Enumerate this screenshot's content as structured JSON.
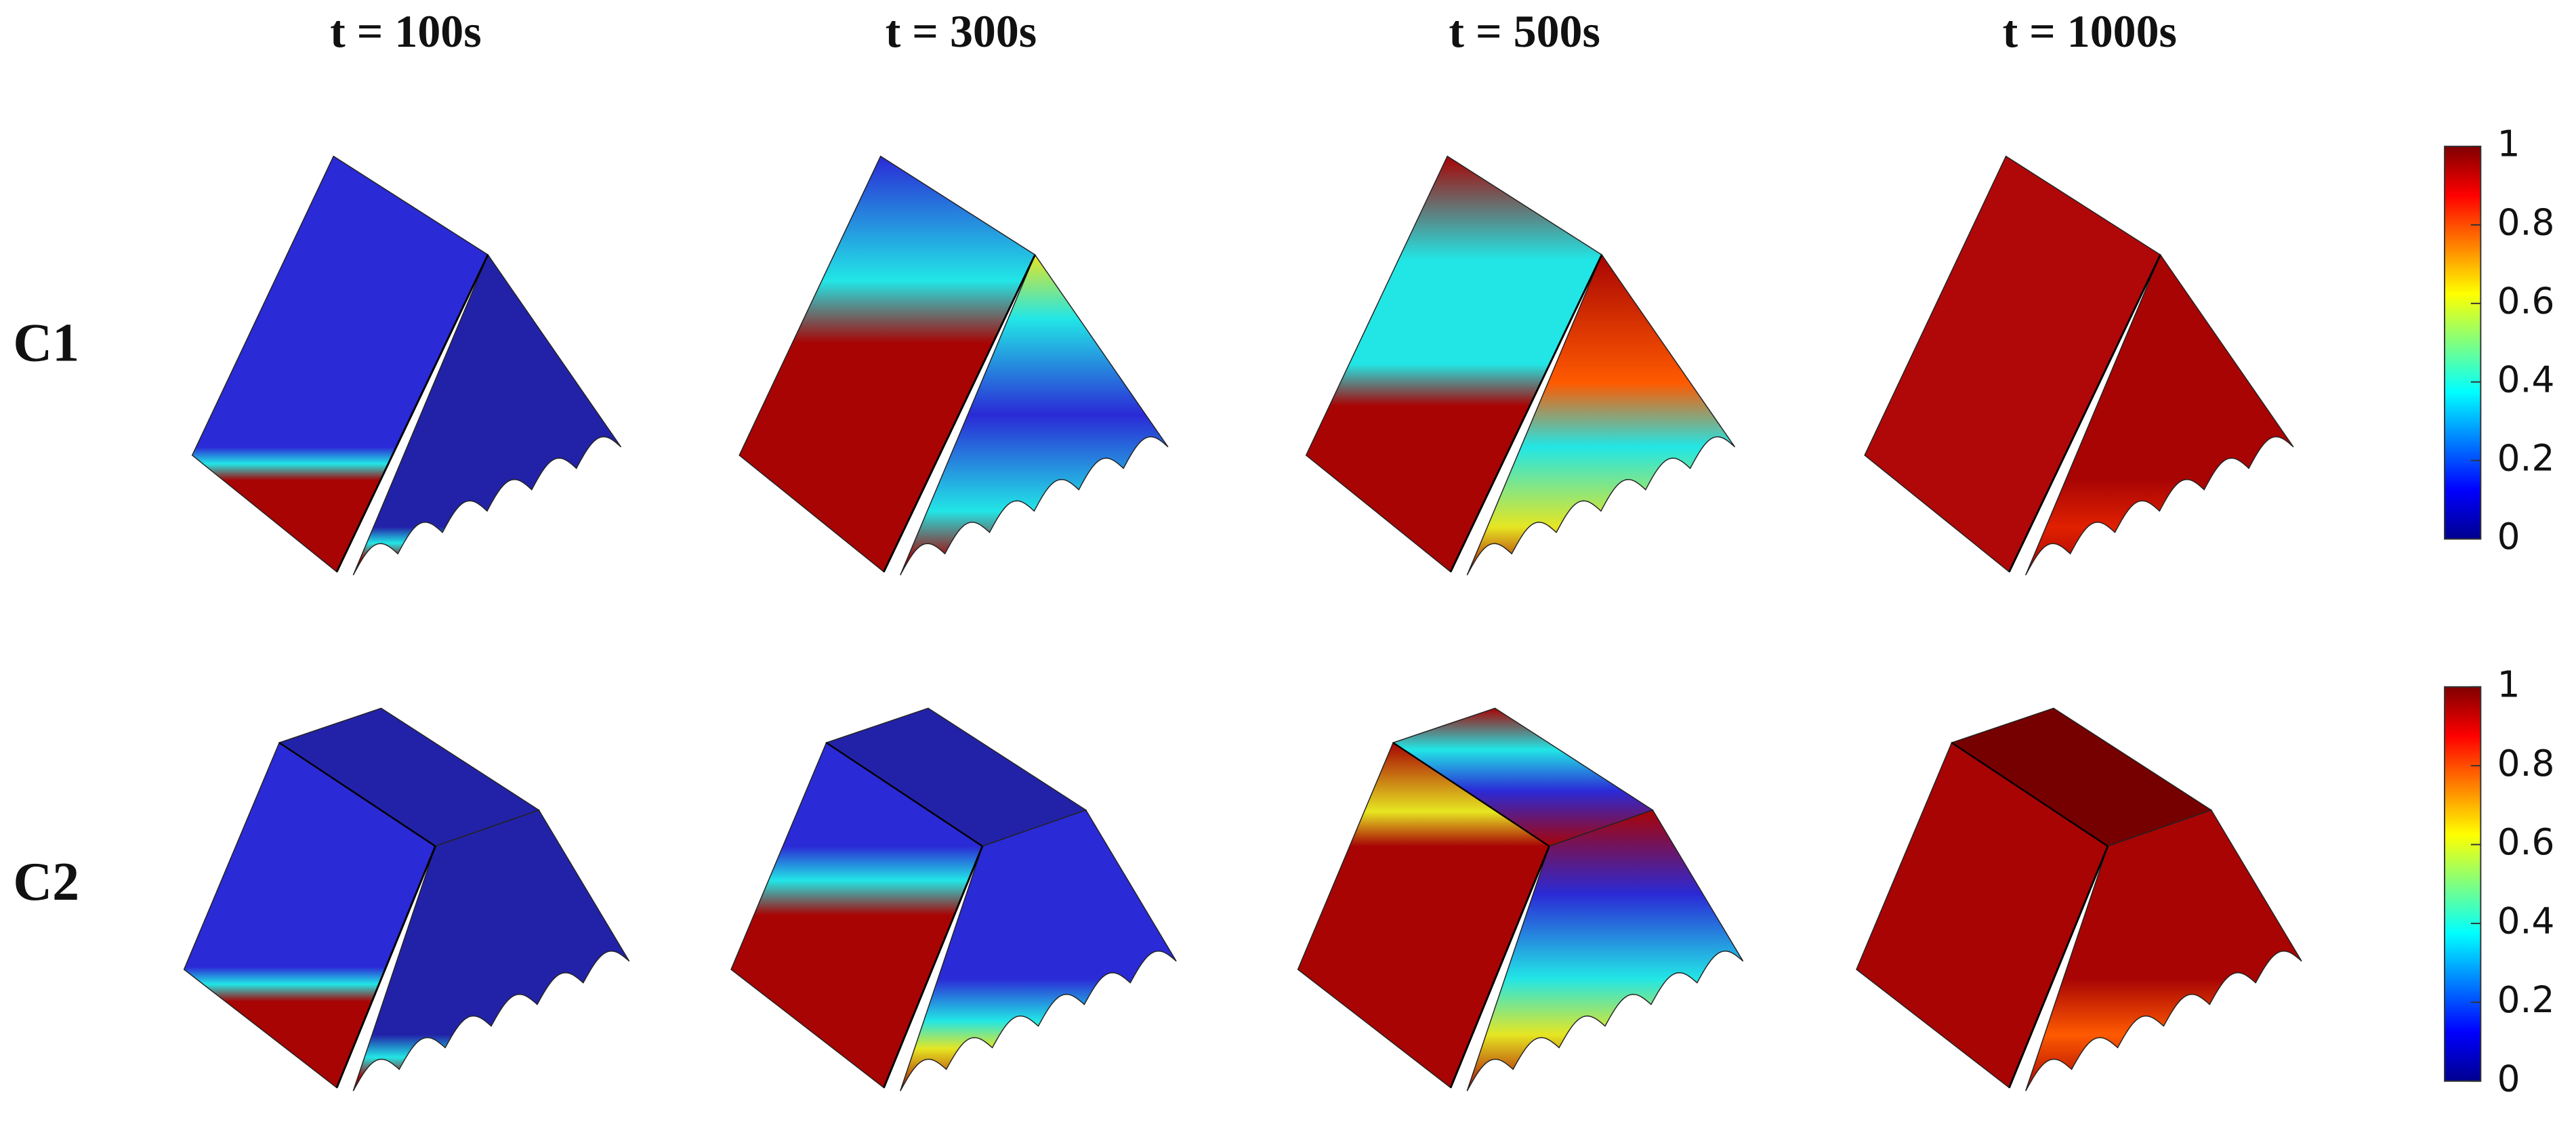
{
  "columns": [
    "t = 100s",
    "t = 300s",
    "t = 500s",
    "t = 1000s"
  ],
  "rows": [
    "C1",
    "C2"
  ],
  "colorbars": [
    {
      "ticks": [
        0,
        0.2,
        0.4,
        0.6,
        0.8,
        1
      ]
    },
    {
      "ticks": [
        0,
        0.2,
        0.4,
        0.6,
        0.8,
        1
      ]
    }
  ]
}
